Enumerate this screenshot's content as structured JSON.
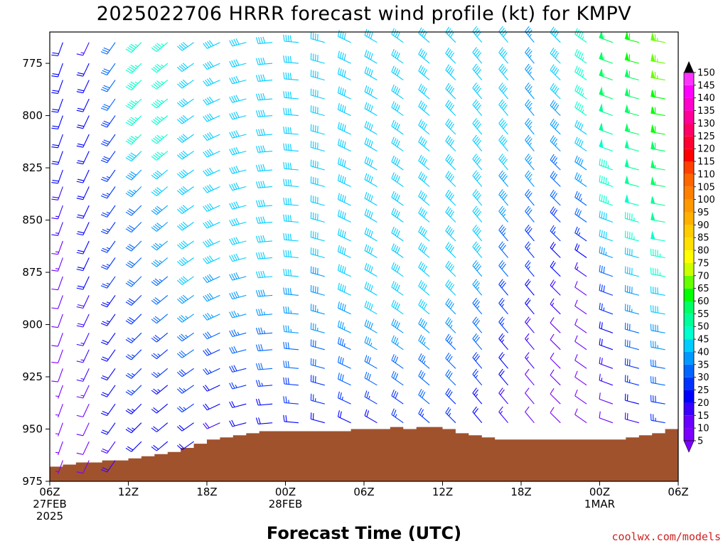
{
  "chart_data": {
    "type": "wind_barb_profile",
    "title": "2025022706 HRRR forecast wind profile (kt) for KMPV",
    "xlabel": "Forecast Time (UTC)",
    "ylabel": "",
    "credit": "coolwx.com/models",
    "y_axis": {
      "unit": "hPa",
      "inverted": true,
      "range": [
        975,
        760
      ],
      "ticks": [
        775,
        800,
        825,
        850,
        875,
        900,
        925,
        950,
        975
      ]
    },
    "x_axis": {
      "unit": "forecast hour",
      "range": [
        0,
        48
      ],
      "ticks": [
        {
          "hour": 0,
          "labels": [
            "06Z",
            "27FEB",
            "2025"
          ]
        },
        {
          "hour": 6,
          "labels": [
            "12Z"
          ]
        },
        {
          "hour": 12,
          "labels": [
            "18Z"
          ]
        },
        {
          "hour": 18,
          "labels": [
            "00Z",
            "28FEB"
          ]
        },
        {
          "hour": 24,
          "labels": [
            "06Z"
          ]
        },
        {
          "hour": 30,
          "labels": [
            "12Z"
          ]
        },
        {
          "hour": 36,
          "labels": [
            "18Z"
          ]
        },
        {
          "hour": 42,
          "labels": [
            "00Z",
            "1MAR"
          ]
        },
        {
          "hour": 48,
          "labels": [
            "06Z"
          ]
        }
      ]
    },
    "levels_hpa": [
      765,
      775,
      783,
      792,
      800,
      809,
      817,
      826,
      834,
      843,
      851,
      860,
      868,
      877,
      886,
      895,
      904,
      912,
      921,
      929,
      938,
      947,
      956,
      965
    ],
    "terrain_surface_hpa": [
      {
        "hour": 0,
        "p": 968
      },
      {
        "hour": 1,
        "p": 967
      },
      {
        "hour": 2,
        "p": 966
      },
      {
        "hour": 3,
        "p": 966
      },
      {
        "hour": 4,
        "p": 965
      },
      {
        "hour": 5,
        "p": 965
      },
      {
        "hour": 6,
        "p": 964
      },
      {
        "hour": 7,
        "p": 963
      },
      {
        "hour": 8,
        "p": 962
      },
      {
        "hour": 9,
        "p": 961
      },
      {
        "hour": 10,
        "p": 959
      },
      {
        "hour": 11,
        "p": 957
      },
      {
        "hour": 12,
        "p": 955
      },
      {
        "hour": 13,
        "p": 954
      },
      {
        "hour": 14,
        "p": 953
      },
      {
        "hour": 15,
        "p": 952
      },
      {
        "hour": 16,
        "p": 951
      },
      {
        "hour": 17,
        "p": 951
      },
      {
        "hour": 18,
        "p": 951
      },
      {
        "hour": 19,
        "p": 951
      },
      {
        "hour": 20,
        "p": 951
      },
      {
        "hour": 21,
        "p": 951
      },
      {
        "hour": 22,
        "p": 951
      },
      {
        "hour": 23,
        "p": 950
      },
      {
        "hour": 24,
        "p": 950
      },
      {
        "hour": 25,
        "p": 950
      },
      {
        "hour": 26,
        "p": 949
      },
      {
        "hour": 27,
        "p": 950
      },
      {
        "hour": 28,
        "p": 949
      },
      {
        "hour": 29,
        "p": 949
      },
      {
        "hour": 30,
        "p": 950
      },
      {
        "hour": 31,
        "p": 952
      },
      {
        "hour": 32,
        "p": 953
      },
      {
        "hour": 33,
        "p": 954
      },
      {
        "hour": 34,
        "p": 955
      },
      {
        "hour": 35,
        "p": 955
      },
      {
        "hour": 36,
        "p": 955
      },
      {
        "hour": 37,
        "p": 955
      },
      {
        "hour": 38,
        "p": 955
      },
      {
        "hour": 39,
        "p": 955
      },
      {
        "hour": 40,
        "p": 955
      },
      {
        "hour": 41,
        "p": 955
      },
      {
        "hour": 42,
        "p": 955
      },
      {
        "hour": 43,
        "p": 955
      },
      {
        "hour": 44,
        "p": 954
      },
      {
        "hour": 45,
        "p": 953
      },
      {
        "hour": 46,
        "p": 952
      },
      {
        "hour": 47,
        "p": 950
      },
      {
        "hour": 48,
        "p": 949
      }
    ],
    "terrain_color": "#a0522d",
    "wind_profiles": [
      {
        "hour": 1,
        "dir": 200,
        "speed": [
          20,
          20,
          20,
          20,
          20,
          20,
          20,
          20,
          18,
          17,
          15,
          14,
          13,
          12,
          11,
          10,
          10,
          8,
          8,
          7,
          7,
          7,
          5,
          5
        ]
      },
      {
        "hour": 3,
        "dir": 205,
        "speed": [
          15,
          20,
          20,
          20,
          20,
          22,
          22,
          22,
          22,
          20,
          20,
          20,
          20,
          20,
          18,
          18,
          17,
          16,
          15,
          14,
          12,
          10,
          9,
          8
        ]
      },
      {
        "hour": 5,
        "dir": 215,
        "speed": [
          30,
          30,
          30,
          30,
          28,
          28,
          28,
          26,
          26,
          25,
          25,
          25,
          25,
          25,
          24,
          23,
          22,
          22,
          21,
          21,
          20,
          20,
          19,
          18
        ]
      },
      {
        "hour": 7,
        "dir": 225,
        "speed": [
          45,
          45,
          45,
          45,
          45,
          45,
          40,
          38,
          35,
          32,
          30,
          30,
          30,
          30,
          28,
          28,
          27,
          26,
          25,
          25,
          24,
          23,
          22,
          20
        ]
      },
      {
        "hour": 9,
        "dir": 230,
        "speed": [
          45,
          45,
          45,
          45,
          45,
          45,
          45,
          42,
          40,
          38,
          38,
          37,
          36,
          34,
          32,
          30,
          28,
          26,
          25,
          24,
          22,
          22,
          20,
          20
        ]
      },
      {
        "hour": 11,
        "dir": 235,
        "speed": [
          40,
          40,
          40,
          40,
          42,
          42,
          42,
          42,
          42,
          42,
          42,
          42,
          40,
          40,
          38,
          36,
          34,
          30,
          28,
          26,
          25,
          22,
          20,
          20
        ]
      },
      {
        "hour": 13,
        "dir": 245,
        "speed": [
          40,
          40,
          40,
          40,
          40,
          40,
          40,
          40,
          40,
          40,
          40,
          40,
          40,
          38,
          38,
          35,
          30,
          28,
          25,
          22,
          20,
          18,
          18,
          15
        ]
      },
      {
        "hour": 15,
        "dir": 255,
        "speed": [
          40,
          40,
          40,
          40,
          40,
          40,
          40,
          40,
          40,
          40,
          40,
          40,
          40,
          38,
          38,
          35,
          33,
          30,
          28,
          25,
          22,
          20,
          18,
          15
        ]
      },
      {
        "hour": 17,
        "dir": 265,
        "speed": [
          40,
          40,
          40,
          40,
          40,
          40,
          40,
          40,
          40,
          40,
          40,
          40,
          40,
          40,
          38,
          36,
          34,
          32,
          30,
          25,
          22,
          20,
          18,
          15
        ]
      },
      {
        "hour": 19,
        "dir": 275,
        "speed": [
          40,
          40,
          40,
          40,
          40,
          40,
          40,
          40,
          40,
          40,
          40,
          40,
          40,
          40,
          38,
          36,
          35,
          32,
          30,
          28,
          25,
          22,
          20,
          18
        ]
      },
      {
        "hour": 21,
        "dir": 285,
        "speed": [
          40,
          40,
          40,
          40,
          40,
          40,
          40,
          40,
          40,
          40,
          40,
          40,
          40,
          38,
          38,
          36,
          35,
          32,
          30,
          28,
          25,
          20,
          18,
          15
        ]
      },
      {
        "hour": 23,
        "dir": 295,
        "speed": [
          40,
          40,
          40,
          40,
          40,
          40,
          40,
          40,
          40,
          40,
          40,
          40,
          40,
          40,
          40,
          38,
          36,
          34,
          32,
          30,
          25,
          20,
          15,
          12
        ]
      },
      {
        "hour": 25,
        "dir": 300,
        "speed": [
          40,
          40,
          40,
          40,
          40,
          40,
          40,
          40,
          40,
          40,
          40,
          40,
          40,
          40,
          40,
          40,
          38,
          35,
          32,
          30,
          25,
          22,
          15,
          12
        ]
      },
      {
        "hour": 27,
        "dir": 305,
        "speed": [
          40,
          40,
          40,
          40,
          40,
          40,
          40,
          40,
          40,
          40,
          40,
          40,
          40,
          40,
          40,
          40,
          38,
          35,
          32,
          30,
          28,
          25,
          15,
          12
        ]
      },
      {
        "hour": 29,
        "dir": 310,
        "speed": [
          40,
          40,
          40,
          40,
          40,
          40,
          40,
          40,
          40,
          40,
          40,
          40,
          40,
          40,
          40,
          40,
          38,
          36,
          34,
          32,
          30,
          25,
          20,
          15
        ]
      },
      {
        "hour": 31,
        "dir": 315,
        "speed": [
          40,
          40,
          40,
          40,
          40,
          40,
          40,
          40,
          40,
          40,
          40,
          40,
          40,
          40,
          40,
          38,
          36,
          34,
          32,
          30,
          28,
          25,
          22,
          20
        ]
      },
      {
        "hour": 33,
        "dir": 320,
        "speed": [
          40,
          40,
          40,
          40,
          40,
          40,
          40,
          40,
          40,
          40,
          40,
          40,
          40,
          38,
          36,
          34,
          32,
          30,
          28,
          26,
          24,
          22,
          20,
          18
        ]
      },
      {
        "hour": 35,
        "dir": 320,
        "speed": [
          40,
          40,
          40,
          40,
          40,
          40,
          40,
          40,
          38,
          38,
          36,
          34,
          32,
          30,
          28,
          26,
          25,
          24,
          22,
          20,
          18,
          16,
          15,
          12
        ]
      },
      {
        "hour": 37,
        "dir": 320,
        "speed": [
          35,
          35,
          35,
          35,
          35,
          35,
          35,
          35,
          35,
          32,
          30,
          28,
          26,
          25,
          22,
          20,
          18,
          16,
          15,
          12,
          12,
          10,
          10,
          8
        ]
      },
      {
        "hour": 39,
        "dir": 315,
        "speed": [
          40,
          40,
          40,
          40,
          38,
          38,
          36,
          34,
          32,
          30,
          28,
          26,
          22,
          20,
          18,
          15,
          12,
          12,
          10,
          10,
          8,
          8,
          8,
          8
        ]
      },
      {
        "hour": 41,
        "dir": 305,
        "speed": [
          45,
          45,
          45,
          45,
          45,
          42,
          40,
          38,
          36,
          34,
          30,
          25,
          20,
          15,
          12,
          10,
          10,
          10,
          10,
          8,
          8,
          8,
          8,
          8
        ]
      },
      {
        "hour": 43,
        "dir": 290,
        "speed": [
          55,
          55,
          55,
          55,
          52,
          50,
          48,
          46,
          45,
          45,
          42,
          40,
          35,
          30,
          28,
          25,
          22,
          20,
          18,
          15,
          12,
          10,
          8,
          8
        ]
      },
      {
        "hour": 45,
        "dir": 285,
        "speed": [
          60,
          60,
          58,
          58,
          55,
          55,
          52,
          50,
          50,
          48,
          45,
          45,
          42,
          40,
          38,
          35,
          32,
          30,
          28,
          25,
          20,
          18,
          15,
          10
        ]
      },
      {
        "hour": 47,
        "dir": 280,
        "speed": [
          65,
          65,
          65,
          62,
          60,
          60,
          58,
          55,
          55,
          52,
          50,
          48,
          45,
          45,
          42,
          40,
          38,
          35,
          32,
          30,
          28,
          25,
          20,
          15
        ]
      }
    ],
    "colorbar": {
      "min": 5,
      "max": 150,
      "step": 5,
      "labels": [
        150,
        145,
        140,
        135,
        130,
        125,
        120,
        115,
        110,
        105,
        100,
        95,
        90,
        85,
        80,
        75,
        70,
        65,
        60,
        55,
        50,
        45,
        40,
        35,
        30,
        25,
        20,
        15,
        10,
        5
      ],
      "colors": [
        "#7b00ff",
        "#6a00ff",
        "#3c00ff",
        "#0000ff",
        "#0033ff",
        "#0066ff",
        "#0099ff",
        "#00ccff",
        "#00ffcc",
        "#00ff99",
        "#00ff66",
        "#00ff00",
        "#66ff00",
        "#ccff00",
        "#ffff00",
        "#ffe000",
        "#ffcc00",
        "#ffb000",
        "#ff9900",
        "#ff8000",
        "#ff6600",
        "#ff4000",
        "#ff0000",
        "#ff0033",
        "#ff0066",
        "#ff0099",
        "#ff00cc",
        "#ff00ff",
        "#ff33ff"
      ]
    }
  }
}
